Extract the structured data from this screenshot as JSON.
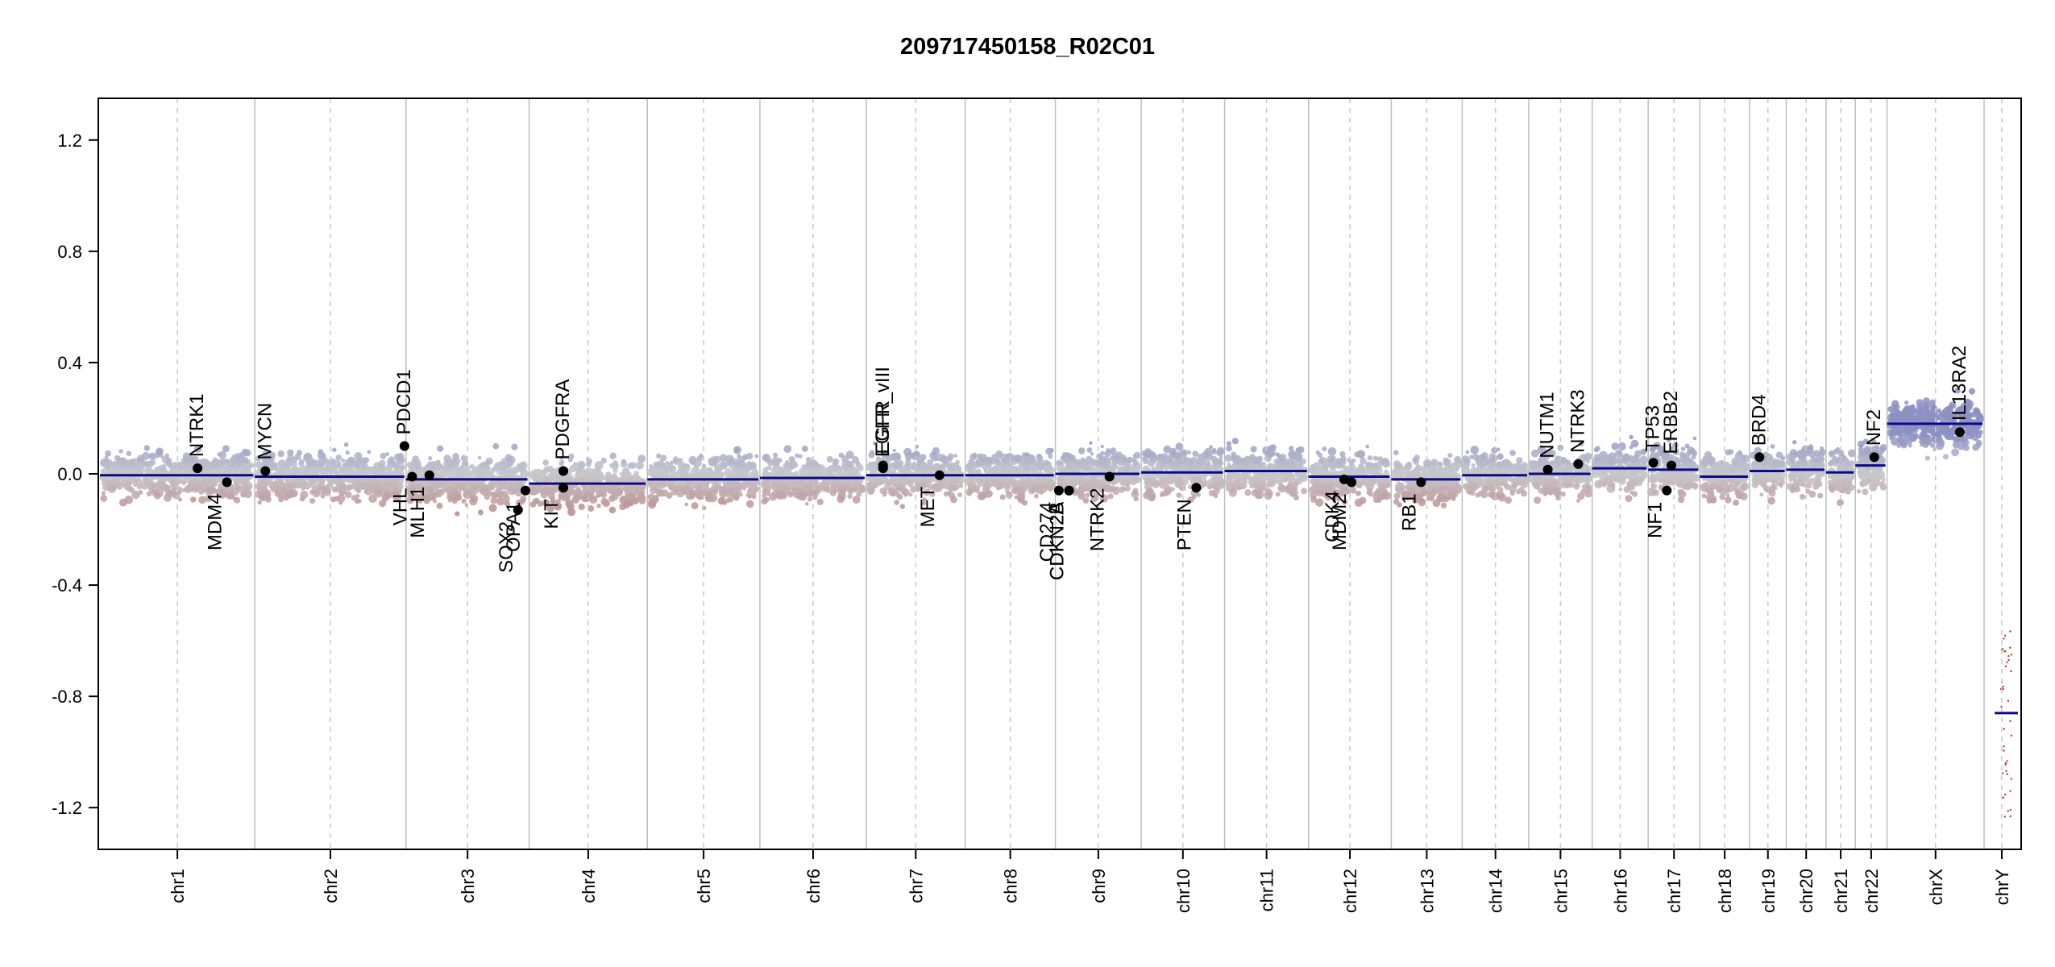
{
  "chart_data": {
    "type": "scatter",
    "title": "209717450158_R02C01",
    "xlabel": "",
    "ylabel": "",
    "ylim": [
      -1.35,
      1.35
    ],
    "y_ticks": [
      "-1.2",
      "-0.8",
      "-0.4",
      "0.0",
      "0.4",
      "0.8",
      "1.2"
    ],
    "y_tick_values": [
      -1.2,
      -0.8,
      -0.4,
      0.0,
      0.4,
      0.8,
      1.2
    ],
    "grid": false,
    "colors": {
      "gain": "#8d90c2",
      "neutral": "#c8c8cc",
      "loss": "#b98a8a",
      "segment": "#0a0a8a",
      "gene_point": "#000000",
      "chrY_points": "#c0392b"
    },
    "chromosomes": [
      {
        "name": "chr1",
        "size": 249,
        "segment": -0.005
      },
      {
        "name": "chr2",
        "size": 243,
        "segment": -0.01
      },
      {
        "name": "chr3",
        "size": 198,
        "segment": -0.02
      },
      {
        "name": "chr4",
        "size": 190,
        "segment": -0.035
      },
      {
        "name": "chr5",
        "size": 181,
        "segment": -0.02
      },
      {
        "name": "chr6",
        "size": 171,
        "segment": -0.015
      },
      {
        "name": "chr7",
        "size": 159,
        "segment": -0.005
      },
      {
        "name": "chr8",
        "size": 145,
        "segment": -0.005
      },
      {
        "name": "chr9",
        "size": 138,
        "segment": 0.0
      },
      {
        "name": "chr10",
        "size": 134,
        "segment": 0.005
      },
      {
        "name": "chr11",
        "size": 135,
        "segment": 0.01
      },
      {
        "name": "chr12",
        "size": 133,
        "segment": -0.01
      },
      {
        "name": "chr13",
        "size": 114,
        "segment": -0.02
      },
      {
        "name": "chr14",
        "size": 107,
        "segment": -0.005
      },
      {
        "name": "chr15",
        "size": 102,
        "segment": 0.0
      },
      {
        "name": "chr16",
        "size": 90,
        "segment": 0.02
      },
      {
        "name": "chr17",
        "size": 83,
        "segment": 0.015
      },
      {
        "name": "chr18",
        "size": 80,
        "segment": -0.01
      },
      {
        "name": "chr19",
        "size": 59,
        "segment": 0.01
      },
      {
        "name": "chr20",
        "size": 64,
        "segment": 0.015
      },
      {
        "name": "chr21",
        "size": 47,
        "segment": 0.005
      },
      {
        "name": "chr22",
        "size": 51,
        "segment": 0.03
      },
      {
        "name": "chrX",
        "size": 156,
        "segment": 0.18
      },
      {
        "name": "chrY",
        "size": 57,
        "segment": -0.86
      }
    ],
    "genes": [
      {
        "name": "NTRK1",
        "chr": "chr1",
        "pos": 0.63,
        "y": 0.02,
        "side": "up"
      },
      {
        "name": "MDM4",
        "chr": "chr1",
        "pos": 0.82,
        "y": -0.03,
        "side": "down"
      },
      {
        "name": "MYCN",
        "chr": "chr2",
        "pos": 0.07,
        "y": 0.01,
        "side": "up"
      },
      {
        "name": "PDCD1",
        "chr": "chr2",
        "pos": 0.99,
        "y": 0.1,
        "side": "up"
      },
      {
        "name": "VHL",
        "chr": "chr3",
        "pos": 0.05,
        "y": -0.01,
        "side": "down"
      },
      {
        "name": "MLH1",
        "chr": "chr3",
        "pos": 0.19,
        "y": -0.005,
        "side": "down"
      },
      {
        "name": "SOX2",
        "chr": "chr3",
        "pos": 0.91,
        "y": -0.13,
        "side": "down"
      },
      {
        "name": "OPA1",
        "chr": "chr3",
        "pos": 0.97,
        "y": -0.06,
        "side": "down"
      },
      {
        "name": "KIT",
        "chr": "chr4",
        "pos": 0.29,
        "y": -0.05,
        "side": "down"
      },
      {
        "name": "PDGFRA",
        "chr": "chr4",
        "pos": 0.29,
        "y": 0.01,
        "side": "up"
      },
      {
        "name": "EGFR",
        "chr": "chr7",
        "pos": 0.17,
        "y": 0.03,
        "side": "up"
      },
      {
        "name": "EGFR_vIII",
        "chr": "chr7",
        "pos": 0.17,
        "y": 0.02,
        "side": "up"
      },
      {
        "name": "MET",
        "chr": "chr7",
        "pos": 0.74,
        "y": -0.005,
        "side": "down"
      },
      {
        "name": "CD274",
        "chr": "chr9",
        "pos": 0.04,
        "y": -0.06,
        "side": "down"
      },
      {
        "name": "CDKN2A",
        "chr": "chr9",
        "pos": 0.16,
        "y": -0.06,
        "side": "down"
      },
      {
        "name": "CDKN2B",
        "chr": "chr9",
        "pos": 0.16,
        "y": -0.06,
        "side": "down"
      },
      {
        "name": "NTRK2",
        "chr": "chr9",
        "pos": 0.63,
        "y": -0.01,
        "side": "down"
      },
      {
        "name": "PTEN",
        "chr": "chr10",
        "pos": 0.66,
        "y": -0.05,
        "side": "down"
      },
      {
        "name": "CDK4",
        "chr": "chr12",
        "pos": 0.43,
        "y": -0.02,
        "side": "down"
      },
      {
        "name": "MDM2",
        "chr": "chr12",
        "pos": 0.52,
        "y": -0.03,
        "side": "down"
      },
      {
        "name": "RB1",
        "chr": "chr13",
        "pos": 0.42,
        "y": -0.03,
        "side": "down"
      },
      {
        "name": "NUTM1",
        "chr": "chr15",
        "pos": 0.3,
        "y": 0.015,
        "side": "up"
      },
      {
        "name": "NTRK3",
        "chr": "chr15",
        "pos": 0.78,
        "y": 0.035,
        "side": "up"
      },
      {
        "name": "TP53",
        "chr": "chr17",
        "pos": 0.1,
        "y": 0.04,
        "side": "up"
      },
      {
        "name": "ERBB2",
        "chr": "chr17",
        "pos": 0.45,
        "y": 0.03,
        "side": "up"
      },
      {
        "name": "NF1",
        "chr": "chr17",
        "pos": 0.36,
        "y": -0.06,
        "side": "down"
      },
      {
        "name": "BRD4",
        "chr": "chr19",
        "pos": 0.27,
        "y": 0.06,
        "side": "up"
      },
      {
        "name": "NF2",
        "chr": "chr22",
        "pos": 0.6,
        "y": 0.06,
        "side": "up"
      },
      {
        "name": "IL13RA2",
        "chr": "chrX",
        "pos": 0.75,
        "y": 0.15,
        "side": "up"
      }
    ]
  }
}
